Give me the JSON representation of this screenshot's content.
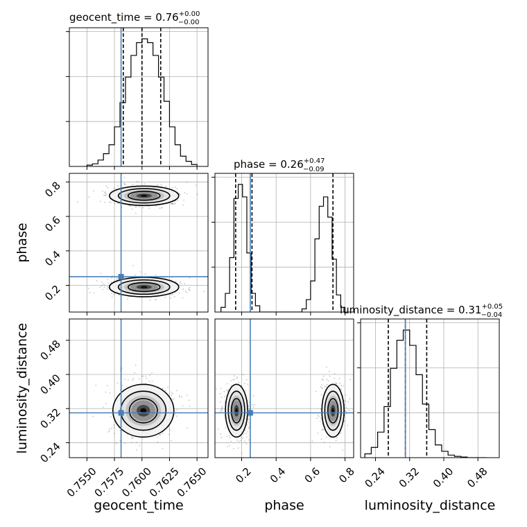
{
  "chart_data": {
    "type": "corner",
    "parameters": [
      "geocent_time",
      "phase",
      "luminosity_distance"
    ],
    "titles": [
      {
        "name": "geocent_time",
        "median": "0.76",
        "plus": "+0.00",
        "minus": "−0.00"
      },
      {
        "name": "phase",
        "median": "0.26",
        "plus": "+0.47",
        "minus": "−0.09"
      },
      {
        "name": "luminosity_distance",
        "median": "0.31",
        "plus": "+0.05",
        "minus": "−0.04"
      }
    ],
    "axis_labels": {
      "x": [
        "geocent_time",
        "phase",
        "luminosity_distance"
      ],
      "y": [
        "phase",
        "luminosity_distance"
      ]
    },
    "ranges": {
      "geocent_time": [
        0.7534,
        0.766
      ],
      "phase": [
        0.045,
        0.85
      ],
      "luminosity_distance": [
        0.205,
        0.53
      ]
    },
    "ticks": {
      "geocent_time": [
        "0.7550",
        "0.7575",
        "0.7600",
        "0.7625",
        "0.7650"
      ],
      "phase": [
        "0.2",
        "0.4",
        "0.6",
        "0.8"
      ],
      "phase_y": [
        "0.2",
        "0.4",
        "0.6",
        "0.8"
      ],
      "luminosity_distance": [
        "0.24",
        "0.32",
        "0.40",
        "0.48"
      ]
    },
    "truth": {
      "geocent_time": 0.7581,
      "phase": 0.25,
      "luminosity_distance": 0.31
    },
    "quantile_lines": {
      "geocent_time": [
        0.7583,
        0.76,
        0.7617
      ],
      "phase": [
        0.165,
        0.26,
        0.73
      ],
      "luminosity_distance": [
        0.27,
        0.31,
        0.36
      ]
    },
    "histograms": {
      "geocent_time": {
        "bins": [
          0.755,
          0.7555,
          0.756,
          0.7565,
          0.757,
          0.7575,
          0.758,
          0.7585,
          0.759,
          0.7595,
          0.76,
          0.7605,
          0.761,
          0.7615,
          0.762,
          0.7625,
          0.763,
          0.7635,
          0.764,
          0.7645,
          0.765
        ],
        "counts": [
          0.01,
          0.02,
          0.05,
          0.1,
          0.17,
          0.31,
          0.5,
          0.7,
          0.87,
          0.97,
          1.0,
          0.97,
          0.87,
          0.7,
          0.51,
          0.31,
          0.17,
          0.08,
          0.04,
          0.015
        ]
      },
      "phase": {
        "bins": [
          0.08,
          0.105,
          0.13,
          0.155,
          0.18,
          0.205,
          0.23,
          0.255,
          0.28,
          0.305,
          0.55,
          0.575,
          0.6,
          0.625,
          0.65,
          0.675,
          0.7,
          0.725,
          0.75,
          0.775,
          0.8
        ],
        "counts": [
          0.03,
          0.12,
          0.35,
          0.73,
          0.82,
          0.74,
          0.38,
          0.12,
          0.04,
          0.0,
          0.02,
          0.08,
          0.2,
          0.47,
          0.68,
          0.74,
          0.61,
          0.34,
          0.11,
          0.03
        ]
      },
      "luminosity_distance": {
        "bins": [
          0.215,
          0.23,
          0.245,
          0.26,
          0.275,
          0.29,
          0.305,
          0.32,
          0.335,
          0.35,
          0.365,
          0.38,
          0.395,
          0.41,
          0.425,
          0.44,
          0.455,
          0.47,
          0.485,
          0.5
        ],
        "counts": [
          0.03,
          0.08,
          0.2,
          0.4,
          0.7,
          0.92,
          1.0,
          0.88,
          0.65,
          0.42,
          0.22,
          0.1,
          0.05,
          0.02,
          0.01,
          0.005,
          0.0,
          0.0,
          0.0
        ]
      }
    },
    "colors": {
      "truth": "#4a7fb4",
      "hist": "#000000",
      "grid": "#b0b0b0"
    },
    "grid": true
  }
}
